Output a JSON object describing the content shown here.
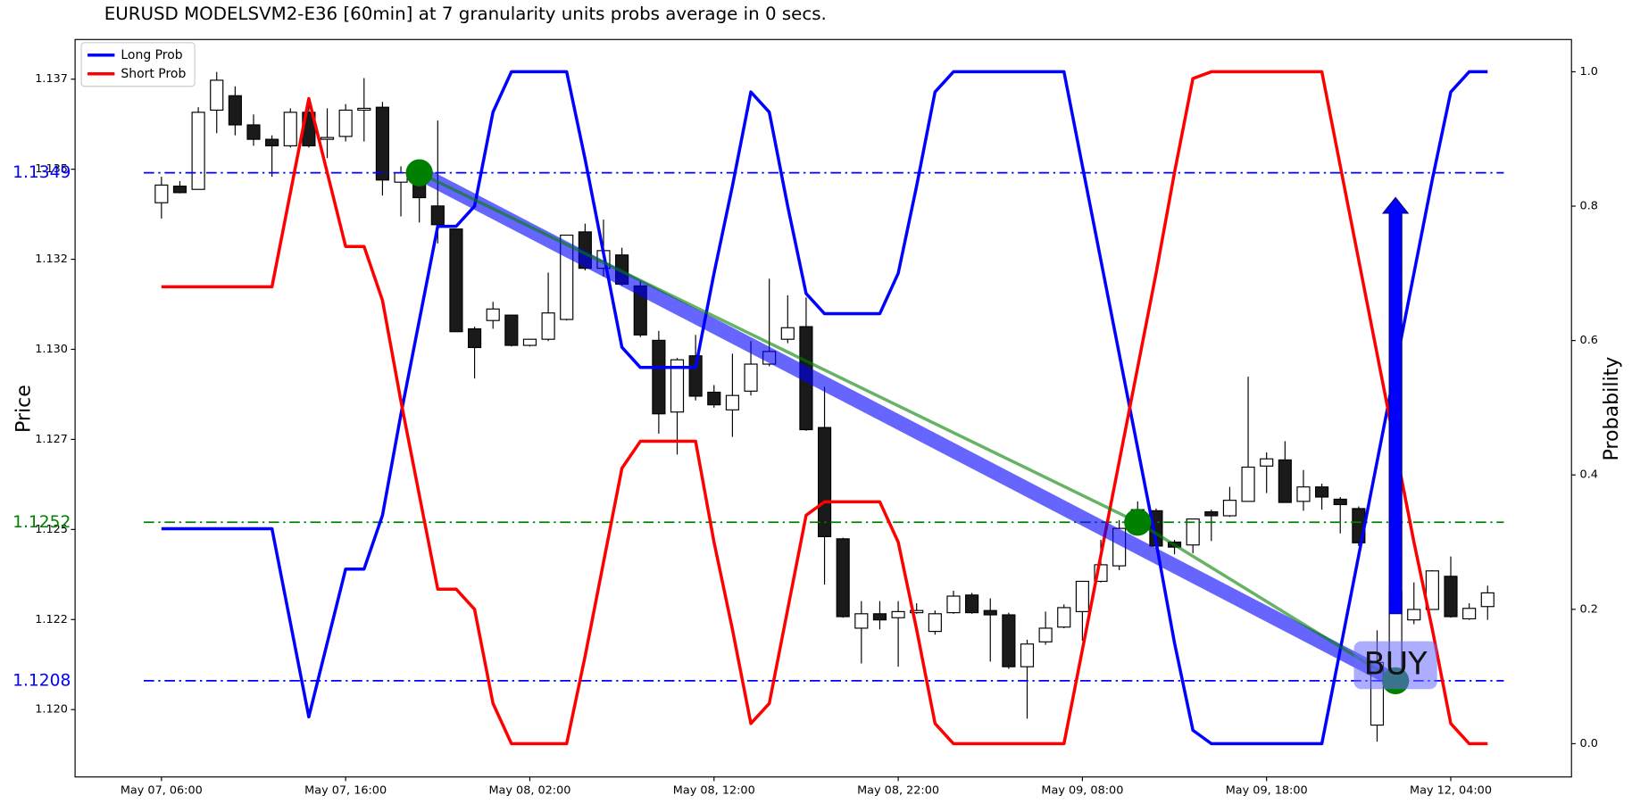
{
  "chart_data": {
    "type": "candlestick",
    "title": "EURUSD MODELSVM2-E36 [60min] at 7 granularity units probs average in 0 secs.",
    "ylabel": "Price",
    "y2label": "Probability",
    "categories": [
      "May 07, 06:00",
      null,
      null,
      null,
      null,
      null,
      null,
      null,
      null,
      null,
      "May 07, 16:00",
      null,
      null,
      null,
      null,
      null,
      null,
      null,
      null,
      null,
      "May 08, 02:00",
      null,
      null,
      null,
      null,
      null,
      null,
      null,
      null,
      null,
      "May 08, 12:00",
      null,
      null,
      null,
      null,
      null,
      null,
      null,
      null,
      null,
      "May 08, 22:00",
      null,
      null,
      null,
      null,
      null,
      null,
      null,
      null,
      null,
      "May 09, 08:00",
      null,
      null,
      null,
      null,
      null,
      null,
      null,
      null,
      null,
      "May 09, 18:00",
      null,
      null,
      null,
      null,
      null,
      null,
      null,
      null,
      null,
      "May 12, 04:00",
      null,
      null
    ],
    "open": [
      1.13407,
      1.13453,
      1.13444,
      1.13664,
      1.13704,
      1.13623,
      1.13583,
      1.13565,
      1.13658,
      1.13583,
      1.13591,
      1.13664,
      1.13672,
      1.13464,
      1.13479,
      1.13398,
      1.13334,
      1.13057,
      1.1308,
      1.13095,
      1.13011,
      1.13028,
      1.13083,
      1.13326,
      1.13225,
      1.13262,
      1.13176,
      1.13025,
      1.12826,
      1.12982,
      1.12881,
      1.12832,
      1.12884,
      1.12959,
      1.13028,
      1.13063,
      1.12783,
      1.12474,
      1.12226,
      1.12266,
      1.12255,
      1.12269,
      1.12217,
      1.12269,
      1.12318,
      1.12275,
      1.12263,
      1.12119,
      1.12188,
      1.12229,
      1.12272,
      1.12356,
      1.12399,
      1.12512,
      1.12552,
      1.12465,
      1.12457,
      1.12549,
      1.12538,
      1.12578,
      1.12676,
      1.12693,
      1.12578,
      1.12618,
      1.12584,
      1.12558,
      1.11957,
      1.12079,
      1.12249,
      1.12278,
      1.1237,
      1.12252,
      1.12286
    ],
    "high": [
      1.13479,
      1.13467,
      1.13672,
      1.1377,
      1.1373,
      1.13652,
      1.13594,
      1.13669,
      1.13681,
      1.13669,
      1.13681,
      1.13753,
      1.13687,
      1.13508,
      1.13502,
      1.13635,
      1.13334,
      1.13063,
      1.13132,
      1.13095,
      1.13028,
      1.13213,
      1.13317,
      1.13349,
      1.1336,
      1.13282,
      1.1319,
      1.13051,
      1.12976,
      1.1304,
      1.12901,
      1.12988,
      1.13023,
      1.13196,
      1.1315,
      1.13144,
      1.12896,
      1.12477,
      1.12301,
      1.12301,
      1.12301,
      1.12295,
      1.12275,
      1.1233,
      1.12324,
      1.12309,
      1.12269,
      1.12194,
      1.12272,
      1.12292,
      1.12356,
      1.12471,
      1.12526,
      1.12578,
      1.12558,
      1.12471,
      1.12529,
      1.12555,
      1.12618,
      1.12924,
      1.12714,
      1.12745,
      1.12665,
      1.12627,
      1.1259,
      1.12564,
      1.1222,
      1.12353,
      1.12353,
      1.12387,
      1.12425,
      1.12295,
      1.12344
    ],
    "low": [
      1.13363,
      1.13433,
      1.13444,
      1.136,
      1.13594,
      1.13565,
      1.13479,
      1.1356,
      1.1356,
      1.13531,
      1.13577,
      1.13577,
      1.13427,
      1.13369,
      1.13352,
      1.13294,
      1.13049,
      1.12919,
      1.13057,
      1.13008,
      1.13008,
      1.13023,
      1.1308,
      1.13219,
      1.13202,
      1.13176,
      1.13034,
      1.12766,
      1.12708,
      1.12858,
      1.12838,
      1.12757,
      1.12872,
      1.12953,
      1.13017,
      1.12774,
      1.12347,
      1.12255,
      1.12128,
      1.12223,
      1.12119,
      1.12266,
      1.12208,
      1.12266,
      1.12266,
      1.12133,
      1.12113,
      1.11975,
      1.1218,
      1.12226,
      1.12191,
      1.12353,
      1.12387,
      1.12503,
      1.12448,
      1.12431,
      1.12434,
      1.12468,
      1.12535,
      1.12578,
      1.12601,
      1.12575,
      1.12552,
      1.12555,
      1.12489,
      1.12454,
      1.11911,
      1.12076,
      1.12237,
      1.12278,
      1.12255,
      1.12249,
      1.12249
    ],
    "close": [
      1.13456,
      1.13435,
      1.13658,
      1.13747,
      1.13623,
      1.13583,
      1.13565,
      1.13658,
      1.13565,
      1.13588,
      1.13664,
      1.13669,
      1.1347,
      1.1349,
      1.13421,
      1.13346,
      1.13049,
      1.13005,
      1.13112,
      1.13011,
      1.13028,
      1.13101,
      1.13317,
      1.13225,
      1.13274,
      1.13181,
      1.1304,
      1.12821,
      1.12971,
      1.1287,
      1.12846,
      1.12872,
      1.12959,
      1.12994,
      1.1306,
      1.12777,
      1.1248,
      1.12258,
      1.12266,
      1.12249,
      1.12272,
      1.12275,
      1.12266,
      1.12315,
      1.12269,
      1.12263,
      1.12119,
      1.12182,
      1.12226,
      1.12283,
      1.12356,
      1.12402,
      1.12503,
      1.12555,
      1.12454,
      1.12451,
      1.12529,
      1.12538,
      1.12581,
      1.12673,
      1.12696,
      1.12575,
      1.12618,
      1.1259,
      1.12569,
      1.12463,
      1.12131,
      1.1233,
      1.12278,
      1.12385,
      1.12258,
      1.12281,
      1.12324
    ],
    "series": [
      {
        "name": "Long Prob",
        "color": "#0000ff",
        "axis": "y2",
        "values": [
          0.32,
          0.32,
          0.32,
          0.32,
          0.32,
          0.32,
          0.32,
          0.18,
          0.04,
          0.15,
          0.26,
          0.26,
          0.34,
          0.49,
          0.63,
          0.77,
          0.77,
          0.8,
          0.94,
          1.0,
          1.0,
          1.0,
          1.0,
          0.87,
          0.73,
          0.59,
          0.56,
          0.56,
          0.56,
          0.56,
          0.7,
          0.83,
          0.97,
          0.94,
          0.8,
          0.67,
          0.64,
          0.64,
          0.64,
          0.64,
          0.7,
          0.83,
          0.97,
          1.0,
          1.0,
          1.0,
          1.0,
          1.0,
          1.0,
          1.0,
          0.86,
          0.72,
          0.58,
          0.44,
          0.3,
          0.15,
          0.02,
          0.0,
          0.0,
          0.0,
          0.0,
          0.0,
          0.0,
          0.0,
          0.14,
          0.28,
          0.42,
          0.56,
          0.7,
          0.84,
          0.97,
          1.0,
          1.0
        ]
      },
      {
        "name": "Short Prob",
        "color": "#ff0000",
        "axis": "y2",
        "values": [
          0.68,
          0.68,
          0.68,
          0.68,
          0.68,
          0.68,
          0.68,
          0.82,
          0.96,
          0.85,
          0.74,
          0.74,
          0.66,
          0.51,
          0.37,
          0.23,
          0.23,
          0.2,
          0.06,
          0.0,
          0.0,
          0.0,
          0.0,
          0.13,
          0.27,
          0.41,
          0.45,
          0.45,
          0.45,
          0.45,
          0.3,
          0.17,
          0.03,
          0.06,
          0.2,
          0.34,
          0.36,
          0.36,
          0.36,
          0.36,
          0.3,
          0.17,
          0.03,
          0.0,
          0.0,
          0.0,
          0.0,
          0.0,
          0.0,
          0.0,
          0.14,
          0.28,
          0.42,
          0.56,
          0.7,
          0.85,
          0.99,
          1.0,
          1.0,
          1.0,
          1.0,
          1.0,
          1.0,
          1.0,
          0.86,
          0.72,
          0.58,
          0.44,
          0.3,
          0.17,
          0.03,
          0.0,
          0.0
        ]
      }
    ],
    "ylim": [
      1.11813,
      1.1386
    ],
    "yticks": [
      {
        "value": 1.12,
        "label": "1.120"
      },
      {
        "value": 1.1225,
        "label": "1.122"
      },
      {
        "value": 1.125,
        "label": "1.125"
      },
      {
        "value": 1.1275,
        "label": "1.127"
      },
      {
        "value": 1.13,
        "label": "1.130"
      },
      {
        "value": 1.1325,
        "label": "1.132"
      },
      {
        "value": 1.135,
        "label": "1.135"
      },
      {
        "value": 1.1375,
        "label": "1.137"
      }
    ],
    "y2lim": [
      -0.0495,
      1.048
    ],
    "y2ticks": [
      {
        "value": 0,
        "label": "0.0"
      },
      0.2,
      0.4,
      0.6,
      0.8,
      {
        "value": 1,
        "label": "1.0"
      }
    ],
    "hlines": [
      {
        "value": 1.1349,
        "color": "#0000ff"
      },
      {
        "value": 1.1252,
        "color": "#008000"
      },
      {
        "value": 1.1208,
        "color": "#0000ff"
      }
    ],
    "signals": {
      "x": [
        14,
        53,
        67
      ],
      "y": [
        1.1349,
        1.1252,
        1.1208
      ],
      "color": "#008000",
      "trend_color": "#0000ff"
    },
    "annotation": "BUY",
    "legend": "upper left",
    "grid": false
  }
}
